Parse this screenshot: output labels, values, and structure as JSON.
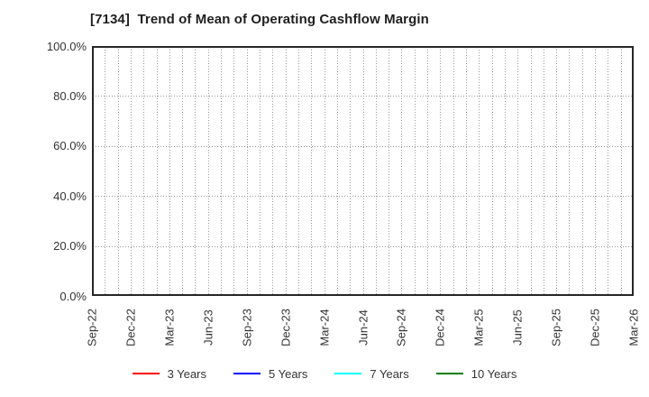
{
  "chart_data": {
    "type": "line",
    "title": "[7134]  Trend of Mean of Operating Cashflow Margin",
    "xlabel": "",
    "ylabel": "",
    "x_tick_labels": [
      "Sep-22",
      "Dec-22",
      "Mar-23",
      "Jun-23",
      "Sep-23",
      "Dec-23",
      "Mar-24",
      "Jun-24",
      "Sep-24",
      "Dec-24",
      "Mar-25",
      "Jun-25",
      "Sep-25",
      "Dec-25",
      "Mar-26"
    ],
    "x_label_every_months": 3,
    "x_total_months": 42,
    "y_tick_values": [
      0,
      20,
      40,
      60,
      80,
      100
    ],
    "y_tick_labels": [
      "0.0%",
      "20.0%",
      "40.0%",
      "60.0%",
      "80.0%",
      "100.0%"
    ],
    "ylim": [
      0,
      100
    ],
    "grid": "dotted vertical gridline every month, dotted horizontal gridline every 20%",
    "legend_position": "bottom-center",
    "series": [
      {
        "name": "3 Years",
        "color": "#ff0000",
        "x": [],
        "values": []
      },
      {
        "name": "5 Years",
        "color": "#0000ff",
        "x": [],
        "values": []
      },
      {
        "name": "7 Years",
        "color": "#00ffff",
        "x": [],
        "values": []
      },
      {
        "name": "10 Years",
        "color": "#008000",
        "x": [],
        "values": []
      }
    ]
  },
  "styles": {
    "background": "#ffffff",
    "frame_color": "#262626",
    "grid_color": "#999999",
    "tick_text_color": "#333333",
    "title_color": "#1f1f1f"
  }
}
